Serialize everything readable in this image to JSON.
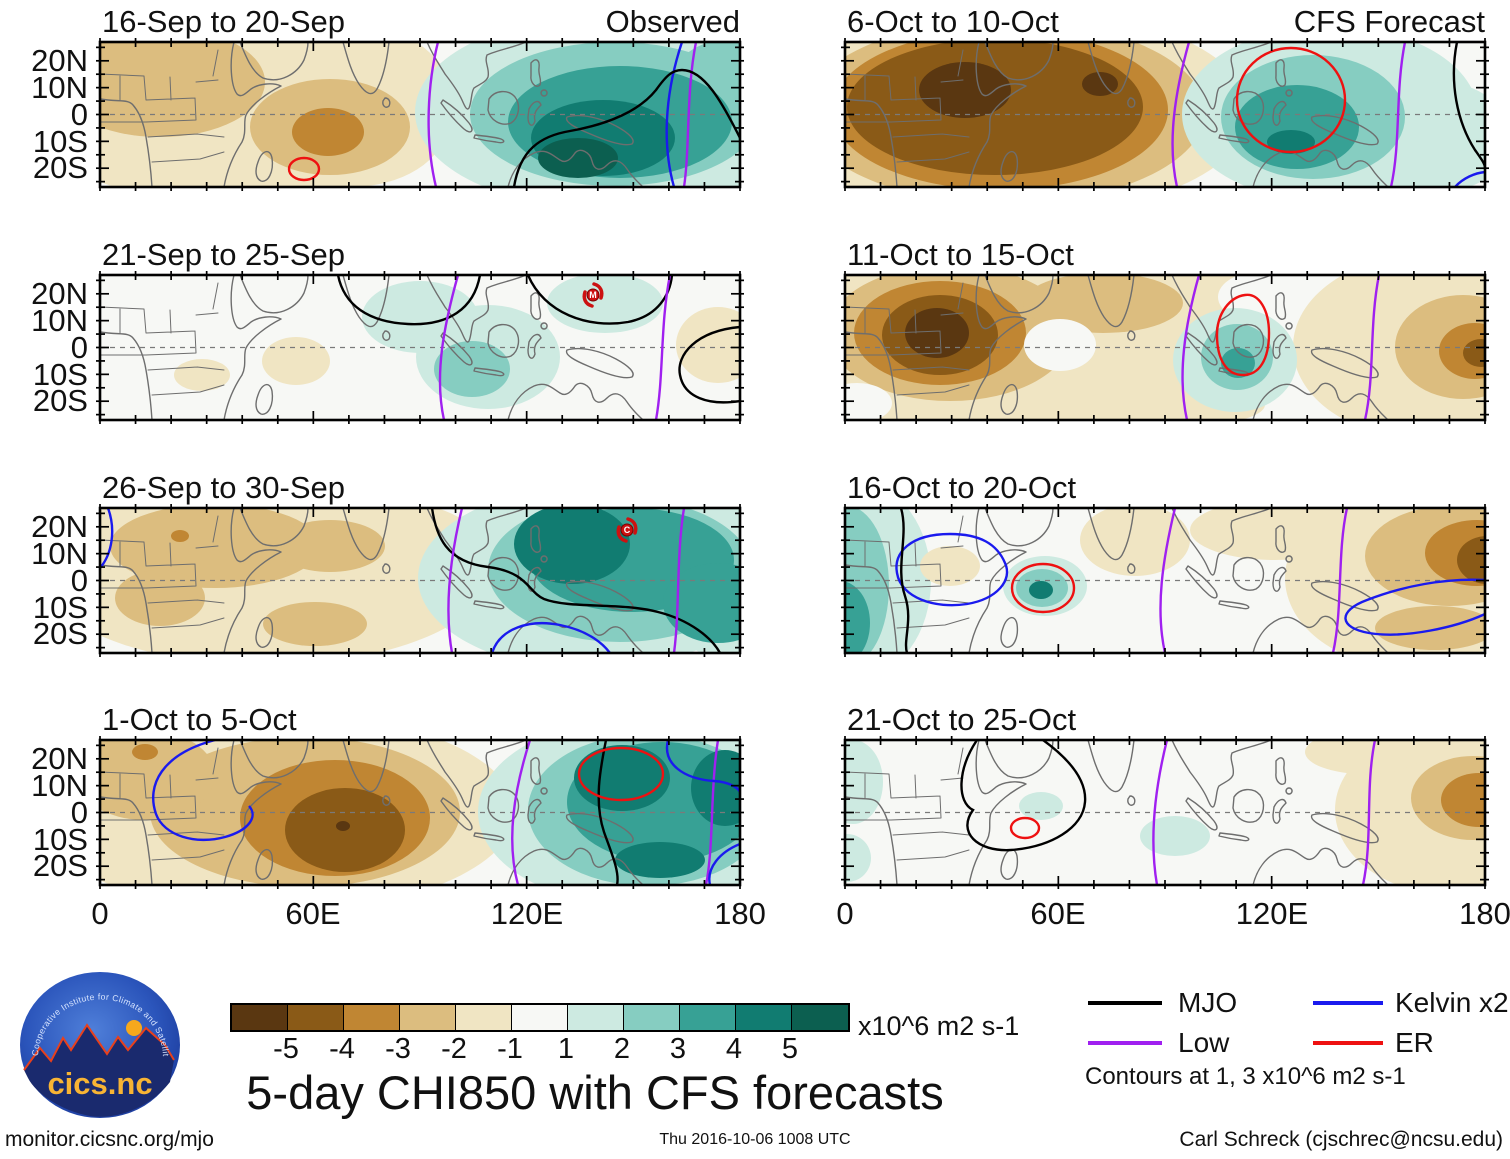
{
  "header": {
    "observed_label": "Observed",
    "forecast_label": "CFS Forecast"
  },
  "panels": [
    {
      "title": "16-Sep to 20-Sep"
    },
    {
      "title": "6-Oct to 10-Oct"
    },
    {
      "title": "21-Sep to 25-Sep",
      "storm_label": "M"
    },
    {
      "title": "11-Oct to 15-Oct"
    },
    {
      "title": "26-Sep to 30-Sep",
      "storm_label": "C"
    },
    {
      "title": "16-Oct to 20-Oct"
    },
    {
      "title": "1-Oct to 5-Oct"
    },
    {
      "title": "21-Oct to 25-Oct"
    }
  ],
  "axes": {
    "y_tick_labels": [
      "20N",
      "10N",
      "0",
      "10S",
      "20S"
    ],
    "x_tick_labels": [
      "0",
      "60E",
      "120E",
      "180"
    ]
  },
  "colorbar": {
    "tick_labels": [
      "-5",
      "-4",
      "-3",
      "-2",
      "-1",
      "1",
      "2",
      "3",
      "4",
      "5"
    ],
    "unit": "x10^6 m2 s-1",
    "colors": [
      "#5a3711",
      "#8a5a17",
      "#c08633",
      "#dcbd7f",
      "#f0e5c3",
      "#f7f8f5",
      "#cdeae1",
      "#86cdc1",
      "#37a195",
      "#117c71",
      "#0c5f50"
    ]
  },
  "legend": {
    "items": [
      {
        "label": "MJO",
        "color": "#000000"
      },
      {
        "label": "Low",
        "color": "#a020f0"
      },
      {
        "label": "Kelvin x2",
        "color": "#1a1aee"
      },
      {
        "label": "ER",
        "color": "#ee1111"
      }
    ],
    "note": "Contours at 1, 3 x10^6 m2 s-1"
  },
  "title": "5-day CHI850 with CFS forecasts",
  "footer": {
    "left": "monitor.cicsnc.org/mjo",
    "center": "Thu 2016-10-06 1008 UTC",
    "right": "Carl Schreck (cjschrec@ncsu.edu)"
  },
  "logo": {
    "arc_text": "Cooperative Institute for Climate and Satellites",
    "wordmark": "cics.nc"
  },
  "chart_data": {
    "type": "heatmap",
    "subtype": "filled-contour longitude-latitude anomaly maps, 4x2 grid",
    "variable": "5-day mean CHI850 (850-hPa velocity potential) anomalies with wave contours",
    "units": "x10^6 m2 s-1",
    "fill_levels": [
      -5,
      -4,
      -3,
      -2,
      -1,
      1,
      2,
      3,
      4,
      5
    ],
    "contour_note": "Line contours drawn at 1 and 3 x10^6 m2 s-1 for MJO (black), Low (purple), Kelvin x2 (blue), ER (red)",
    "lon_range_deg": [
      0,
      180
    ],
    "lat_range_deg": [
      -27,
      27
    ],
    "x_ticks_deg": [
      0,
      60,
      120,
      180
    ],
    "y_ticks_deg": [
      20,
      10,
      0,
      -10,
      -20
    ],
    "panels": [
      {
        "title": "16-Sep to 20-Sep",
        "source": "Observed",
        "centers": [
          {
            "lon": 62,
            "lat": -6,
            "value": -3
          },
          {
            "lon": 134,
            "lat": -13,
            "value": 5
          }
        ],
        "wave_lines": {
          "ER": "closed cell near 57E 21S",
          "Low": [
            "95E",
            "167E"
          ],
          "Kelvin": [
            "163E"
          ],
          "MJO": "broad contour over 120E-180 south of equator"
        }
      },
      {
        "title": "6-Oct to 10-Oct",
        "source": "CFS Forecast",
        "centers": [
          {
            "lon": 30,
            "lat": 2,
            "value": -5
          },
          {
            "lon": 72,
            "lat": 2,
            "value": -5
          },
          {
            "lon": 126,
            "lat": -8,
            "value": 4
          }
        ],
        "wave_lines": {
          "ER": "large closed cell near 122E 2N",
          "Low": [
            "96E",
            "155E"
          ],
          "MJO": "170E",
          "Kelvin": [
            "SE corner near 176E 25S"
          ]
        }
      },
      {
        "title": "21-Sep to 25-Sep",
        "source": "Observed",
        "tropical_cyclone": {
          "label": "M",
          "lon": 139,
          "lat": 17
        },
        "centers": [
          {
            "lon": 104,
            "lat": -7,
            "value": 2
          },
          {
            "lon": 55,
            "lat": -8,
            "value": -1
          },
          {
            "lon": 173,
            "lat": 0,
            "value": -1
          }
        ],
        "wave_lines": {
          "MJO": "open loops near 70-105E north and 150-180E south",
          "Low": [
            "100E",
            "160E"
          ]
        }
      },
      {
        "title": "11-Oct to 15-Oct",
        "source": "CFS Forecast",
        "centers": [
          {
            "lon": 26,
            "lat": -5,
            "value": -5
          },
          {
            "lon": 172,
            "lat": -4,
            "value": -3
          },
          {
            "lon": 110,
            "lat": -5,
            "value": 3
          }
        ],
        "wave_lines": {
          "ER": "closed cell over Borneo-Java near 112E",
          "Low": [
            "98E",
            "148E"
          ]
        }
      },
      {
        "title": "26-Sep to 30-Sep",
        "source": "Observed",
        "tropical_cyclone": {
          "label": "C",
          "lon": 148,
          "lat": 15
        },
        "centers": [
          {
            "lon": 30,
            "lat": 10,
            "value": -2
          },
          {
            "lon": 62,
            "lat": -16,
            "value": -2
          },
          {
            "lon": 130,
            "lat": 3,
            "value": 4
          }
        ],
        "wave_lines": {
          "MJO": "from 95E north to 170E south",
          "Low": [
            "100E",
            "163E"
          ],
          "Kelvin": [
            "loop 105-143E near 20S",
            "far west edge"
          ]
        }
      },
      {
        "title": "16-Oct to 20-Oct",
        "source": "CFS Forecast",
        "centers": [
          {
            "lon": 3,
            "lat": -15,
            "value": 3
          },
          {
            "lon": 55,
            "lat": -3,
            "value": 4
          },
          {
            "lon": 178,
            "lat": 7,
            "value": -4
          },
          {
            "lon": 82,
            "lat": 10,
            "value": -1
          }
        ],
        "wave_lines": {
          "ER": "closed cell near 55E 3S",
          "Kelvin": [
            "closed loop over East Africa 15-45E",
            "loop near New Guinea 145-180E"
          ],
          "Low": [
            "90E",
            "140E"
          ],
          "MJO": "17E"
        }
      },
      {
        "title": "1-Oct to 5-Oct",
        "source": "Observed",
        "centers": [
          {
            "lon": 69,
            "lat": -7,
            "value": -5
          },
          {
            "lon": 146,
            "lat": 8,
            "value": 4
          },
          {
            "lon": 172,
            "lat": 5,
            "value": 4
          }
        ],
        "wave_lines": {
          "ER": "closed cell near 146E 8N",
          "Kelvin": [
            "loop over East Africa",
            "西 Pacific 155-180E"
          ],
          "Low": [
            "118E",
            "172E"
          ],
          "MJO": "140E"
        }
      },
      {
        "title": "21-Oct to 25-Oct",
        "source": "CFS Forecast",
        "centers": [
          {
            "lon": 170,
            "lat": -4,
            "value": -3
          },
          {
            "lon": 95,
            "lat": -8,
            "value": 1
          },
          {
            "lon": 56,
            "lat": -2,
            "value": 1
          }
        ],
        "wave_lines": {
          "MJO": "large open loop 35-67E",
          "ER": "small cell near 50E 6S",
          "Low": [
            "88E",
            "146E"
          ]
        }
      }
    ]
  }
}
